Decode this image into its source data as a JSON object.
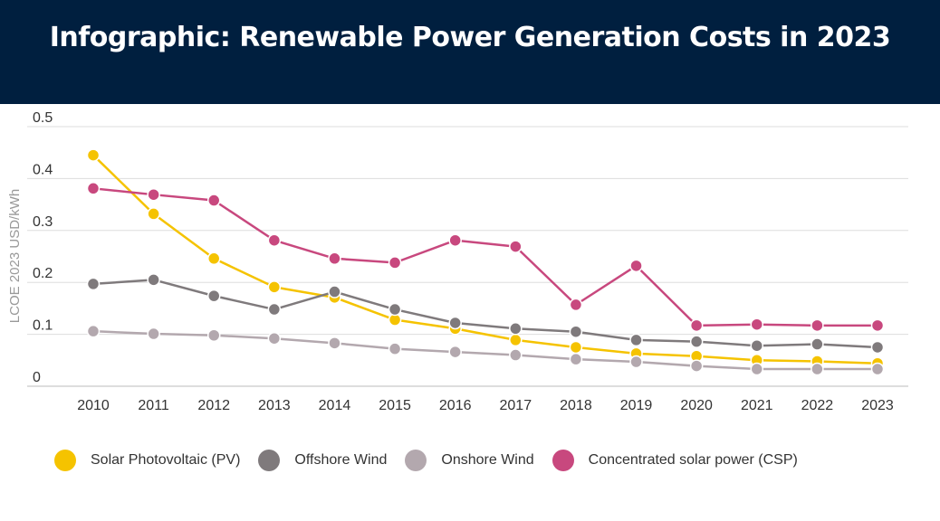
{
  "header": {
    "title": "Infographic: Renewable Power Generation Costs in 2023"
  },
  "chart_data": {
    "type": "line",
    "ylabel": "LCOE 2023 USD/kWh",
    "xlabel": "",
    "ylim": [
      0,
      0.5
    ],
    "yticks": [
      "0",
      "0.1",
      "0.2",
      "0.3",
      "0.4",
      "0.5"
    ],
    "categories": [
      "2010",
      "2011",
      "2012",
      "2013",
      "2014",
      "2015",
      "2016",
      "2017",
      "2018",
      "2019",
      "2020",
      "2021",
      "2022",
      "2023"
    ],
    "grid": true,
    "legend_position": "bottom",
    "series": [
      {
        "name": "Solar Photovoltaic (PV)",
        "color": "#f5c300",
        "values": [
          0.445,
          0.332,
          0.246,
          0.191,
          0.171,
          0.128,
          0.111,
          0.089,
          0.075,
          0.063,
          0.058,
          0.05,
          0.048,
          0.044
        ]
      },
      {
        "name": "Offshore Wind",
        "color": "#7f7a7c",
        "values": [
          0.197,
          0.205,
          0.174,
          0.148,
          0.182,
          0.148,
          0.122,
          0.111,
          0.105,
          0.089,
          0.086,
          0.078,
          0.081,
          0.075
        ]
      },
      {
        "name": "Onshore Wind",
        "color": "#b3a8ae",
        "values": [
          0.106,
          0.101,
          0.098,
          0.092,
          0.083,
          0.072,
          0.066,
          0.06,
          0.052,
          0.047,
          0.039,
          0.033,
          0.033,
          0.033
        ]
      },
      {
        "name": "Concentrated solar power (CSP)",
        "color": "#c8487e",
        "values": [
          0.381,
          0.369,
          0.358,
          0.281,
          0.246,
          0.238,
          0.281,
          0.269,
          0.157,
          0.232,
          0.117,
          0.119,
          0.117,
          0.117
        ]
      }
    ]
  }
}
